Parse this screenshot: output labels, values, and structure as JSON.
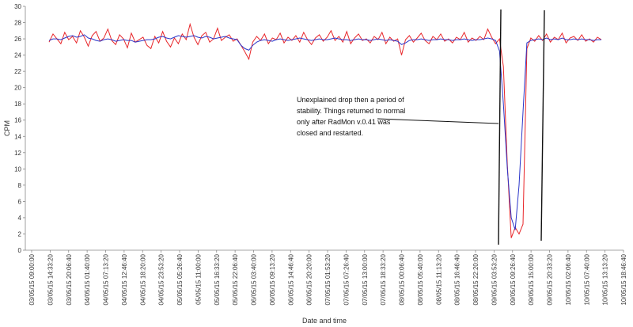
{
  "chart_data": {
    "type": "line",
    "title": "",
    "xlabel": "Date and time",
    "ylabel": "CPM",
    "ylim": [
      0,
      30
    ],
    "yticks": [
      0,
      2,
      4,
      6,
      8,
      10,
      12,
      14,
      16,
      18,
      20,
      22,
      24,
      26,
      28,
      30
    ],
    "grid": false,
    "x_tick_labels": [
      "03/05/15 09:00:00",
      "03/05/15 14:33:20",
      "03/05/15 20:06:40",
      "04/05/15 01:40:00",
      "04/05/15 07:13:20",
      "04/05/15 12:46:40",
      "04/05/15 18:20:00",
      "04/05/15 23:53:20",
      "05/05/15 05:26:40",
      "05/05/15 11:00:00",
      "05/05/15 16:33:20",
      "05/05/15 22:06:40",
      "06/05/15 03:40:00",
      "06/05/15 09:13:20",
      "06/05/15 14:46:40",
      "06/05/15 20:20:00",
      "07/05/15 01:53:20",
      "07/05/15 07:26:40",
      "07/05/15 13:00:00",
      "07/05/15 18:33:20",
      "08/05/15 00:06:40",
      "08/05/15 05:40:00",
      "08/05/15 11:13:20",
      "08/05/15 16:46:40",
      "08/05/15 22:20:00",
      "09/05/15 03:53:20",
      "09/05/15 09:26:40",
      "09/05/15 15:00:00",
      "09/05/15 20:33:20",
      "10/05/15 02:06:40",
      "10/05/15 07:40:00",
      "10/05/15 13:13:20",
      "10/05/15 18:46:40"
    ],
    "series": [
      {
        "color": "#e8262a",
        "values": [
          25.6,
          26.6,
          26.0,
          25.4,
          26.8,
          25.9,
          26.3,
          25.5,
          27.0,
          26.2,
          25.1,
          26.4,
          26.9,
          25.7,
          26.1,
          27.2,
          25.8,
          25.3,
          26.5,
          26.0,
          24.9,
          26.7,
          25.6,
          25.9,
          26.2,
          25.2,
          24.8,
          26.3,
          25.5,
          26.9,
          25.7,
          25.0,
          26.1,
          25.4,
          26.6,
          25.9,
          27.8,
          26.2,
          25.3,
          26.4,
          26.8,
          25.6,
          26.0,
          27.3,
          25.8,
          26.2,
          26.5,
          25.7,
          26.0,
          25.2,
          24.4,
          23.5,
          25.6,
          26.3,
          25.8,
          26.6,
          25.4,
          26.1,
          25.9,
          26.7,
          25.5,
          26.2,
          25.8,
          26.4,
          25.6,
          26.8,
          25.9,
          25.3,
          26.1,
          26.5,
          25.7,
          26.2,
          27.0,
          25.8,
          26.3,
          25.6,
          26.9,
          25.4,
          26.1,
          26.6,
          25.8,
          26.0,
          25.5,
          26.3,
          25.9,
          26.8,
          25.4,
          26.2,
          25.7,
          26.0,
          24.0,
          25.9,
          26.4,
          25.6,
          26.1,
          26.7,
          25.8,
          25.4,
          26.3,
          25.9,
          26.6,
          25.7,
          26.0,
          25.5,
          26.2,
          25.9,
          26.8,
          25.6,
          26.1,
          25.8,
          26.3,
          25.9,
          27.2,
          26.2,
          25.4,
          26.0,
          22.6,
          10.5,
          1.5,
          2.8,
          2.0,
          3.2,
          24.8,
          26.1,
          25.7,
          26.4,
          25.8,
          26.6,
          25.6,
          26.2,
          25.9,
          26.7,
          25.5,
          26.1,
          26.3,
          25.8,
          26.5,
          25.7,
          26.0,
          25.6,
          26.2,
          25.9
        ]
      },
      {
        "color": "#2a35c9",
        "values": [
          25.8,
          26.0,
          26.0,
          25.9,
          26.1,
          26.3,
          26.4,
          26.2,
          26.3,
          26.5,
          26.1,
          26.0,
          25.8,
          25.7,
          25.9,
          26.0,
          25.9,
          25.7,
          25.8,
          25.9,
          25.8,
          25.8,
          25.6,
          25.7,
          25.8,
          25.9,
          25.9,
          26.0,
          26.2,
          26.3,
          26.1,
          26.0,
          26.2,
          26.4,
          26.3,
          26.2,
          26.3,
          26.4,
          26.2,
          26.1,
          26.3,
          26.2,
          26.0,
          26.1,
          26.2,
          26.3,
          26.1,
          26.0,
          25.9,
          25.2,
          24.8,
          24.6,
          25.2,
          25.6,
          25.8,
          25.9,
          25.8,
          25.7,
          25.9,
          26.0,
          25.9,
          25.8,
          25.9,
          26.0,
          26.1,
          26.0,
          25.9,
          25.8,
          25.9,
          26.0,
          25.9,
          25.9,
          26.0,
          26.1,
          26.0,
          25.9,
          25.9,
          25.8,
          25.9,
          26.0,
          25.9,
          25.9,
          25.8,
          25.9,
          26.0,
          25.9,
          25.8,
          25.9,
          25.8,
          25.7,
          25.3,
          25.5,
          25.8,
          25.9,
          25.9,
          26.0,
          25.9,
          25.8,
          25.9,
          25.9,
          26.0,
          25.9,
          25.9,
          25.8,
          25.9,
          25.9,
          26.0,
          25.9,
          25.8,
          25.9,
          25.9,
          26.0,
          26.1,
          26.0,
          25.8,
          24.5,
          18.0,
          10.0,
          4.0,
          2.5,
          8.0,
          17.0,
          25.5,
          25.8,
          25.9,
          26.0,
          25.9,
          26.1,
          25.9,
          26.0,
          25.9,
          26.1,
          25.9,
          25.9,
          26.0,
          25.9,
          26.0,
          25.9,
          25.9,
          25.8,
          25.9,
          25.9
        ]
      }
    ],
    "annotation": {
      "lines": [
        "Unexplained drop then a period of",
        "stability. Things returned to normal",
        "only after RadMon v.0.41 was",
        "closed and restarted."
      ]
    }
  }
}
